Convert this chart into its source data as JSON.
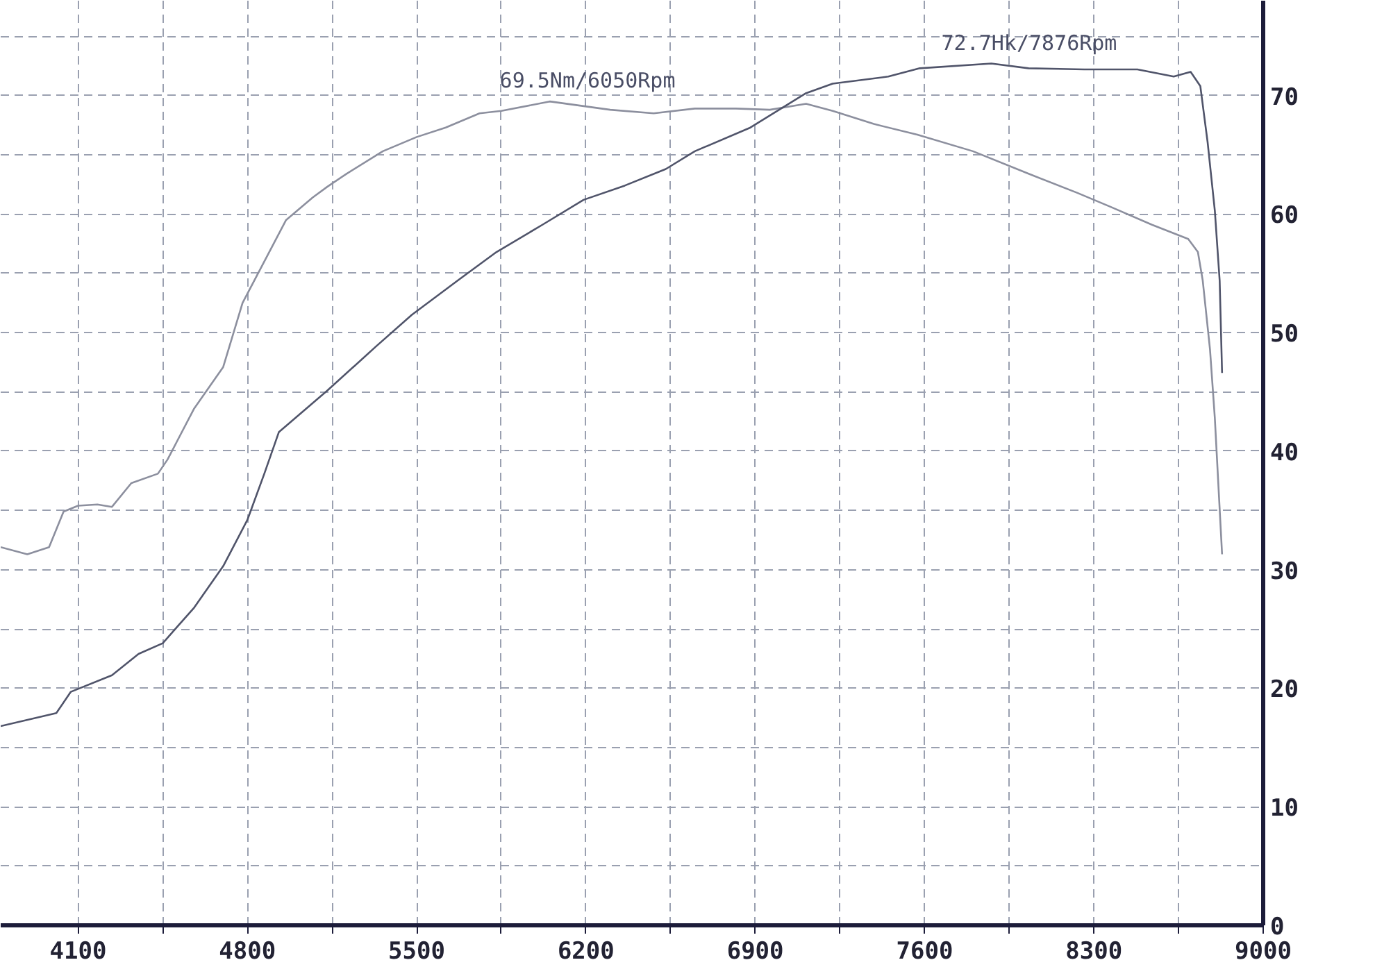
{
  "chart_data": {
    "type": "line",
    "series": [
      {
        "color": "#8c8f9e",
        "x": [
          3780,
          3890,
          3980,
          4040,
          4100,
          4180,
          4240,
          4320,
          4430,
          4470,
          4580,
          4700,
          4780,
          4870,
          4960,
          5070,
          5130,
          5210,
          5360,
          5500,
          5620,
          5760,
          5850,
          6050,
          6300,
          6480,
          6650,
          6820,
          6960,
          7110,
          7220,
          7390,
          7570,
          7800,
          8030,
          8230,
          8370,
          8540,
          8690,
          8730,
          8750,
          8780,
          8800,
          8830
        ],
        "values": [
          31.9,
          31.3,
          31.9,
          34.9,
          35.4,
          35.5,
          35.3,
          37.3,
          38.1,
          39.3,
          43.6,
          47.1,
          52.5,
          56.0,
          59.5,
          61.4,
          62.3,
          63.4,
          65.3,
          66.5,
          67.3,
          68.5,
          68.7,
          69.5,
          68.8,
          68.5,
          68.9,
          68.9,
          68.8,
          69.3,
          68.7,
          67.6,
          66.7,
          65.3,
          63.4,
          61.8,
          60.6,
          59.1,
          57.9,
          56.8,
          54.4,
          48.6,
          42.8,
          31.3
        ]
      },
      {
        "color": "#50546a",
        "x": [
          3780,
          4010,
          4070,
          4240,
          4350,
          4450,
          4580,
          4700,
          4800,
          4870,
          4930,
          5130,
          5330,
          5480,
          5670,
          5830,
          6020,
          6190,
          6360,
          6530,
          6650,
          6880,
          7110,
          7220,
          7450,
          7580,
          7876,
          8030,
          8260,
          8480,
          8630,
          8700,
          8740,
          8770,
          8800,
          8820,
          8830
        ],
        "values": [
          16.8,
          17.9,
          19.7,
          21.1,
          22.9,
          23.8,
          26.8,
          30.3,
          34.2,
          38.1,
          41.6,
          45.1,
          48.8,
          51.5,
          54.4,
          56.8,
          59.1,
          61.2,
          62.4,
          63.8,
          65.3,
          67.3,
          70.2,
          71.0,
          71.6,
          72.3,
          72.7,
          72.3,
          72.2,
          72.2,
          71.6,
          72.0,
          70.8,
          66.1,
          60.3,
          54.4,
          46.6
        ]
      }
    ],
    "xlim": [
      3780,
      9000
    ],
    "xticks": [
      4100,
      {
        "value": 4450,
        "label": null
      },
      4800,
      {
        "value": 5150,
        "label": null
      },
      5500,
      {
        "value": 5850,
        "label": null
      },
      6200,
      {
        "value": 6550,
        "label": null
      },
      6900,
      {
        "value": 7250,
        "label": null
      },
      7600,
      {
        "value": 7950,
        "label": null
      },
      8300,
      {
        "value": 8650,
        "label": null
      },
      9000
    ],
    "ylim": [
      0,
      78
    ],
    "yticks": [
      0,
      {
        "value": 5,
        "label": null
      },
      10,
      {
        "value": 15,
        "label": null
      },
      20,
      {
        "value": 25,
        "label": null
      },
      30,
      {
        "value": 35,
        "label": null
      },
      40,
      {
        "value": 45,
        "label": null
      },
      50,
      {
        "value": 55,
        "label": null
      },
      60,
      {
        "value": 65,
        "label": null
      },
      70,
      {
        "value": 75,
        "label": null
      }
    ],
    "grid": true,
    "line_style": "solid",
    "annotations": [
      {
        "text": "69.5Nm/6050Rpm",
        "x": 6050,
        "y": 69.5
      },
      {
        "text": "72.7Hk/7876Rpm",
        "x": 7876,
        "y": 72.7
      }
    ]
  }
}
